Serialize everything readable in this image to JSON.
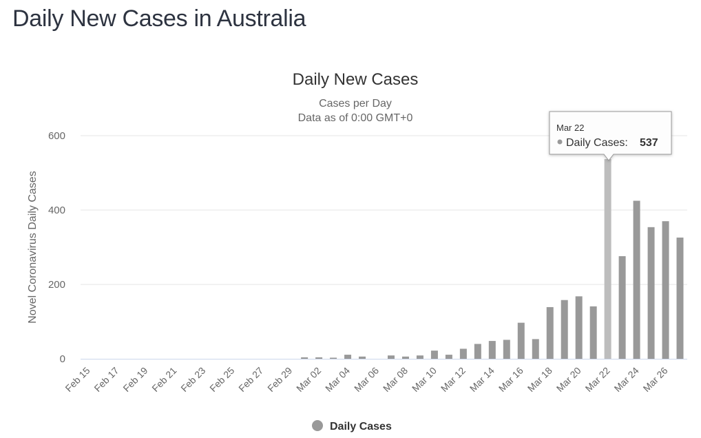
{
  "page": {
    "title": "Daily New Cases in Australia"
  },
  "chart_data": {
    "type": "bar",
    "title": "Daily New Cases",
    "subtitle_line1": "Cases per Day",
    "subtitle_line2": "Data as of 0:00 GMT+0",
    "ylabel": "Novel Coronavirus Daily Cases",
    "ylim": [
      0,
      600
    ],
    "yticks": [
      0,
      200,
      400,
      600
    ],
    "categories": [
      "Feb 15",
      "Feb 16",
      "Feb 17",
      "Feb 18",
      "Feb 19",
      "Feb 20",
      "Feb 21",
      "Feb 22",
      "Feb 23",
      "Feb 24",
      "Feb 25",
      "Feb 26",
      "Feb 27",
      "Feb 28",
      "Feb 29",
      "Mar 01",
      "Mar 02",
      "Mar 03",
      "Mar 04",
      "Mar 05",
      "Mar 06",
      "Mar 07",
      "Mar 08",
      "Mar 09",
      "Mar 10",
      "Mar 11",
      "Mar 12",
      "Mar 13",
      "Mar 14",
      "Mar 15",
      "Mar 16",
      "Mar 17",
      "Mar 18",
      "Mar 19",
      "Mar 20",
      "Mar 21",
      "Mar 22",
      "Mar 23",
      "Mar 24",
      "Mar 25",
      "Mar 26",
      "Mar 27"
    ],
    "xtick_labels": [
      "Feb 15",
      "Feb 17",
      "Feb 19",
      "Feb 21",
      "Feb 23",
      "Feb 25",
      "Feb 27",
      "Feb 29",
      "Mar 02",
      "Mar 04",
      "Mar 06",
      "Mar 08",
      "Mar 10",
      "Mar 12",
      "Mar 14",
      "Mar 16",
      "Mar 18",
      "Mar 20",
      "Mar 22",
      "Mar 24",
      "Mar 26"
    ],
    "series": [
      {
        "name": "Daily Cases",
        "color": "#999999",
        "values": [
          0,
          0,
          0,
          0,
          0,
          0,
          0,
          0,
          0,
          0,
          0,
          0,
          0,
          0,
          0,
          4,
          4,
          3,
          11,
          6,
          0,
          9,
          6,
          9,
          22,
          11,
          27,
          40,
          48,
          51,
          97,
          53,
          139,
          158,
          168,
          141,
          537,
          276,
          425,
          354,
          370,
          326
        ]
      }
    ],
    "highlight_index": 36,
    "highlight_color": "#bdbdbd",
    "tooltip": {
      "date": "Mar 22",
      "series_label": "Daily Cases:",
      "value": "537"
    },
    "legend": {
      "label": "Daily Cases",
      "position": "bottom-center"
    },
    "grid": true
  }
}
